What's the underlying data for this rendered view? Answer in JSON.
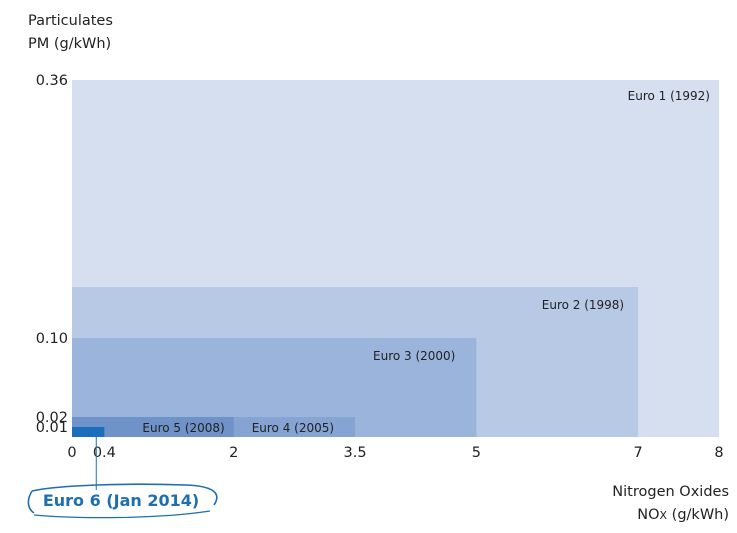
{
  "chart_data": {
    "type": "area",
    "ylabel_line1": "Particulates",
    "ylabel_line2": "PM (g/kWh)",
    "xlabel_line1": "Nitrogen Oxides",
    "xlabel_line2_main": "NO",
    "xlabel_line2_sub": "X",
    "xlabel_line2_unit": " (g/kWh)",
    "xlim": [
      0,
      8
    ],
    "ylim": [
      0,
      0.36
    ],
    "x_ticks": [
      {
        "value": 0,
        "label": "0"
      },
      {
        "value": 0.4,
        "label": "0.4"
      },
      {
        "value": 2,
        "label": "2"
      },
      {
        "value": 3.5,
        "label": "3.5"
      },
      {
        "value": 5,
        "label": "5"
      },
      {
        "value": 7,
        "label": "7"
      },
      {
        "value": 8,
        "label": "8"
      }
    ],
    "y_ticks": [
      {
        "value": 0.01,
        "label": "0.01"
      },
      {
        "value": 0.02,
        "label": "0.02"
      },
      {
        "value": 0.1,
        "label": "0.10"
      },
      {
        "value": 0.36,
        "label": "0.36"
      }
    ],
    "standards": [
      {
        "name": "Euro 1 (1992)",
        "nox": 8,
        "pm": 0.36,
        "color": "#d5dff0"
      },
      {
        "name": "Euro 2 (1998)",
        "nox": 7,
        "pm": 0.15,
        "color": "#b8c9e6"
      },
      {
        "name": "Euro 3 (2000)",
        "nox": 5,
        "pm": 0.1,
        "color": "#9bb4dc"
      },
      {
        "name": "Euro 4 (2005)",
        "nox": 3.5,
        "pm": 0.02,
        "color": "#85a3d3"
      },
      {
        "name": "Euro 5 (2008)",
        "nox": 2,
        "pm": 0.02,
        "color": "#6f92c9"
      },
      {
        "name": "Euro 6 (Jan 2014)",
        "nox": 0.4,
        "pm": 0.01,
        "color": "#1a6fbc"
      }
    ],
    "highlight_label": "Euro 6 (Jan 2014)",
    "highlight_color": "#1f6fb0"
  }
}
